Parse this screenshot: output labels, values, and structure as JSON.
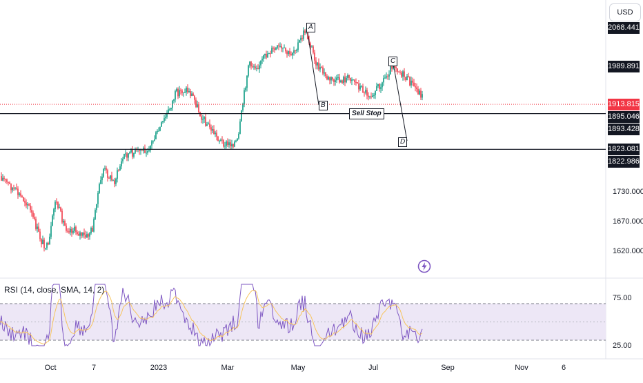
{
  "currency": "USD",
  "price_axis": {
    "ticks": [
      "1730.000",
      "1670.000",
      "1620.000"
    ],
    "tags": [
      {
        "label": "2068.441",
        "price": 2068.441,
        "style": "dark"
      },
      {
        "label": "1989.891",
        "price": 1989.891,
        "style": "dark"
      },
      {
        "label": "1913.815",
        "price": 1913.815,
        "style": "red"
      },
      {
        "label": "1895.046",
        "price": 1895.046,
        "style": "dark"
      },
      {
        "label": "1893.428",
        "price": 1893.428,
        "style": "dark"
      },
      {
        "label": "1823.081",
        "price": 1823.081,
        "style": "dark"
      },
      {
        "label": "1822.986",
        "price": 1822.986,
        "style": "dark"
      }
    ]
  },
  "time_axis": [
    "Oct",
    "7",
    "2023",
    "Mar",
    "May",
    "Jul",
    "Sep",
    "Nov",
    "6"
  ],
  "annotations": {
    "waves": [
      "A",
      "B",
      "C",
      "D"
    ],
    "sell_stop": "Sell Stop"
  },
  "levels": {
    "sell_stop_line": 1895.046,
    "target_line": 1823.081,
    "last_price": 1913.815
  },
  "rsi": {
    "title": "RSI (14, close, SMA, 14, 2)",
    "upper_label": "75.00",
    "lower_label": "25.00",
    "upper": 75,
    "lower": 25
  },
  "colors": {
    "up": "#089981",
    "down": "#f23645",
    "rsi_line": "#7e57c2",
    "rsi_ma": "#f7c55f",
    "rsi_band": "#ede7f6",
    "level_line": "#131722"
  },
  "icons": {
    "bolt": "lightning-icon"
  }
}
